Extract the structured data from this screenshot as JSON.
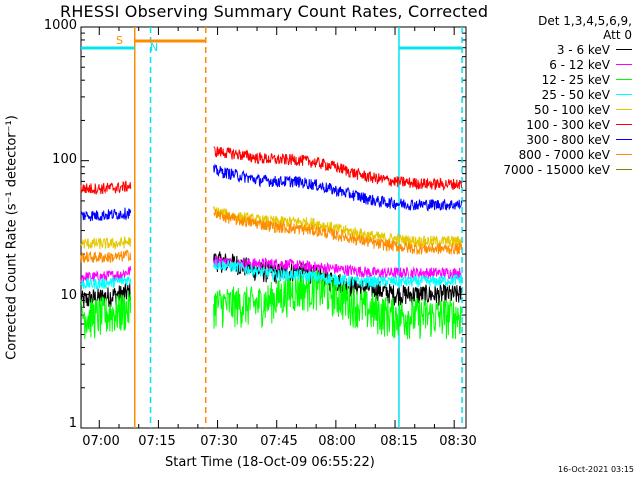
{
  "chart_data": {
    "type": "line",
    "title": "RHESSI Observing Summary Count Rates, Corrected",
    "xlabel": "Start Time (18-Oct-09 06:55:22)",
    "ylabel": "Corrected Count Rate (s⁻¹ detector⁻¹)",
    "yscale": "log",
    "ylim": [
      1,
      1000
    ],
    "xlim": [
      "06:55:22",
      "08:33:00"
    ],
    "y_ticks": [
      "1",
      "10",
      "100",
      "1000"
    ],
    "x_ticks": [
      "07:00",
      "07:15",
      "07:30",
      "07:45",
      "08:00",
      "08:15",
      "08:30"
    ],
    "legend_header": [
      "Det 1,3,4,5,6,9,",
      "Att 0"
    ],
    "legend_position": "right",
    "flags": {
      "S": {
        "label": "S",
        "start": "06:57",
        "end": "07:12",
        "color": "#ff8c00"
      },
      "N": {
        "label": "N",
        "start": "07:13",
        "end": "07:27",
        "color": "#00e5ee"
      }
    },
    "night_bars": [
      {
        "start": "06:55:22",
        "end": "07:09",
        "color": "#00e5ee"
      },
      {
        "start": "08:16",
        "end": "08:32",
        "color": "#00e5ee"
      }
    ],
    "saa_bar": {
      "start": "07:09",
      "end": "07:27",
      "color": "#ff8c00"
    },
    "vertical_lines": [
      {
        "time": "07:09",
        "color": "#ff8c00",
        "style": "solid"
      },
      {
        "time": "07:13",
        "color": "#00e5ee",
        "style": "dashed"
      },
      {
        "time": "07:27",
        "color": "#ff8c00",
        "style": "dashed"
      },
      {
        "time": "08:16",
        "color": "#00e5ee",
        "style": "solid"
      },
      {
        "time": "08:32",
        "color": "#00e5ee",
        "style": "dashed"
      }
    ],
    "series": [
      {
        "name": "3 - 6 keV",
        "color": "#000000",
        "segments": [
          {
            "x": [
              "06:55:22",
              "07:00",
              "07:05",
              "07:08"
            ],
            "y": [
              9,
              9.5,
              10,
              10.5
            ]
          },
          {
            "x": [
              "07:29",
              "07:35",
              "07:40",
              "07:45",
              "07:50",
              "07:55",
              "08:00",
              "08:05",
              "08:10",
              "08:15",
              "08:20",
              "08:25",
              "08:32"
            ],
            "y": [
              18,
              17,
              15,
              14.5,
              15,
              14,
              12.5,
              11.5,
              11,
              10,
              10,
              10,
              10
            ]
          }
        ]
      },
      {
        "name": "6 - 12 keV",
        "color": "#ff00ff",
        "segments": [
          {
            "x": [
              "06:55:22",
              "07:00",
              "07:05",
              "07:08"
            ],
            "y": [
              13.5,
              13.5,
              14,
              15
            ]
          },
          {
            "x": [
              "07:29",
              "07:35",
              "07:40",
              "07:45",
              "07:50",
              "07:55",
              "08:00",
              "08:05",
              "08:10",
              "08:15",
              "08:20",
              "08:25",
              "08:32"
            ],
            "y": [
              18,
              17,
              17,
              17,
              16.5,
              16,
              15.5,
              15,
              14.5,
              14.5,
              14.5,
              14.5,
              14.5
            ]
          }
        ]
      },
      {
        "name": "12 - 25 keV",
        "color": "#00ff00",
        "segments": [
          {
            "x": [
              "06:55:22",
              "07:00",
              "07:05",
              "07:08"
            ],
            "y": [
              7,
              7,
              7.5,
              8
            ]
          },
          {
            "x": [
              "07:29",
              "07:35",
              "07:40",
              "07:45",
              "07:50",
              "07:55",
              "08:00",
              "08:05",
              "08:10",
              "08:15",
              "08:20",
              "08:25",
              "08:32"
            ],
            "y": [
              8.5,
              8.5,
              8.5,
              9.5,
              11,
              11.5,
              10,
              8.5,
              7.5,
              7,
              7,
              7,
              7
            ]
          }
        ]
      },
      {
        "name": "25 - 50 keV",
        "color": "#00ffff",
        "segments": [
          {
            "x": [
              "06:55:22",
              "07:00",
              "07:05",
              "07:08"
            ],
            "y": [
              12,
              12,
              12.5,
              13
            ]
          },
          {
            "x": [
              "07:29",
              "07:35",
              "07:40",
              "07:45",
              "07:50",
              "07:55",
              "08:00",
              "08:05",
              "08:10",
              "08:15",
              "08:20",
              "08:25",
              "08:32"
            ],
            "y": [
              17,
              16,
              15,
              14,
              14,
              13.5,
              13,
              12.5,
              12.5,
              12.5,
              12.5,
              12.5,
              13
            ]
          }
        ]
      },
      {
        "name": "50 - 100 keV",
        "color": "#e6c800",
        "segments": [
          {
            "x": [
              "06:55:22",
              "07:00",
              "07:05",
              "07:08"
            ],
            "y": [
              24,
              24,
              24,
              25
            ]
          },
          {
            "x": [
              "07:29",
              "07:35",
              "07:40",
              "07:45",
              "07:50",
              "07:55",
              "08:00",
              "08:05",
              "08:10",
              "08:15",
              "08:20",
              "08:25",
              "08:32"
            ],
            "y": [
              42,
              38,
              36,
              35,
              35,
              34,
              31,
              29,
              27,
              26,
              25,
              25,
              25
            ]
          }
        ]
      },
      {
        "name": "100 - 300 keV",
        "color": "#ff0000",
        "segments": [
          {
            "x": [
              "06:55:22",
              "07:00",
              "07:05",
              "07:08"
            ],
            "y": [
              62,
              62,
              63,
              65
            ]
          },
          {
            "x": [
              "07:29",
              "07:35",
              "07:40",
              "07:45",
              "07:50",
              "07:55",
              "08:00",
              "08:05",
              "08:10",
              "08:15",
              "08:20",
              "08:25",
              "08:32"
            ],
            "y": [
              118,
              112,
              105,
              102,
              102,
              97,
              90,
              80,
              74,
              70,
              68,
              67,
              67
            ]
          }
        ]
      },
      {
        "name": "300 - 800 keV",
        "color": "#0000ff",
        "segments": [
          {
            "x": [
              "06:55:22",
              "07:00",
              "07:05",
              "07:08"
            ],
            "y": [
              39,
              39,
              40,
              41
            ]
          },
          {
            "x": [
              "07:29",
              "07:35",
              "07:40",
              "07:45",
              "07:50",
              "07:55",
              "08:00",
              "08:05",
              "08:10",
              "08:15",
              "08:20",
              "08:25",
              "08:32"
            ],
            "y": [
              85,
              78,
              72,
              70,
              70,
              66,
              60,
              55,
              50,
              48,
              47,
              47,
              47
            ]
          }
        ]
      },
      {
        "name": "800 - 7000 keV",
        "color": "#ff8c00",
        "segments": [
          {
            "x": [
              "06:55:22",
              "07:00",
              "07:05",
              "07:08"
            ],
            "y": [
              19,
              19,
              19,
              20
            ]
          },
          {
            "x": [
              "07:29",
              "07:35",
              "07:40",
              "07:45",
              "07:50",
              "07:55",
              "08:00",
              "08:05",
              "08:10",
              "08:15",
              "08:20",
              "08:25",
              "08:32"
            ],
            "y": [
              40,
              36,
              34,
              32,
              31,
              30,
              28,
              26,
              24,
              23,
              22,
              22,
              22
            ]
          }
        ]
      },
      {
        "name": "7000 - 15000 keV",
        "color": "#808000",
        "segments": []
      }
    ]
  },
  "timestamp": "16-Oct-2021 03:15"
}
